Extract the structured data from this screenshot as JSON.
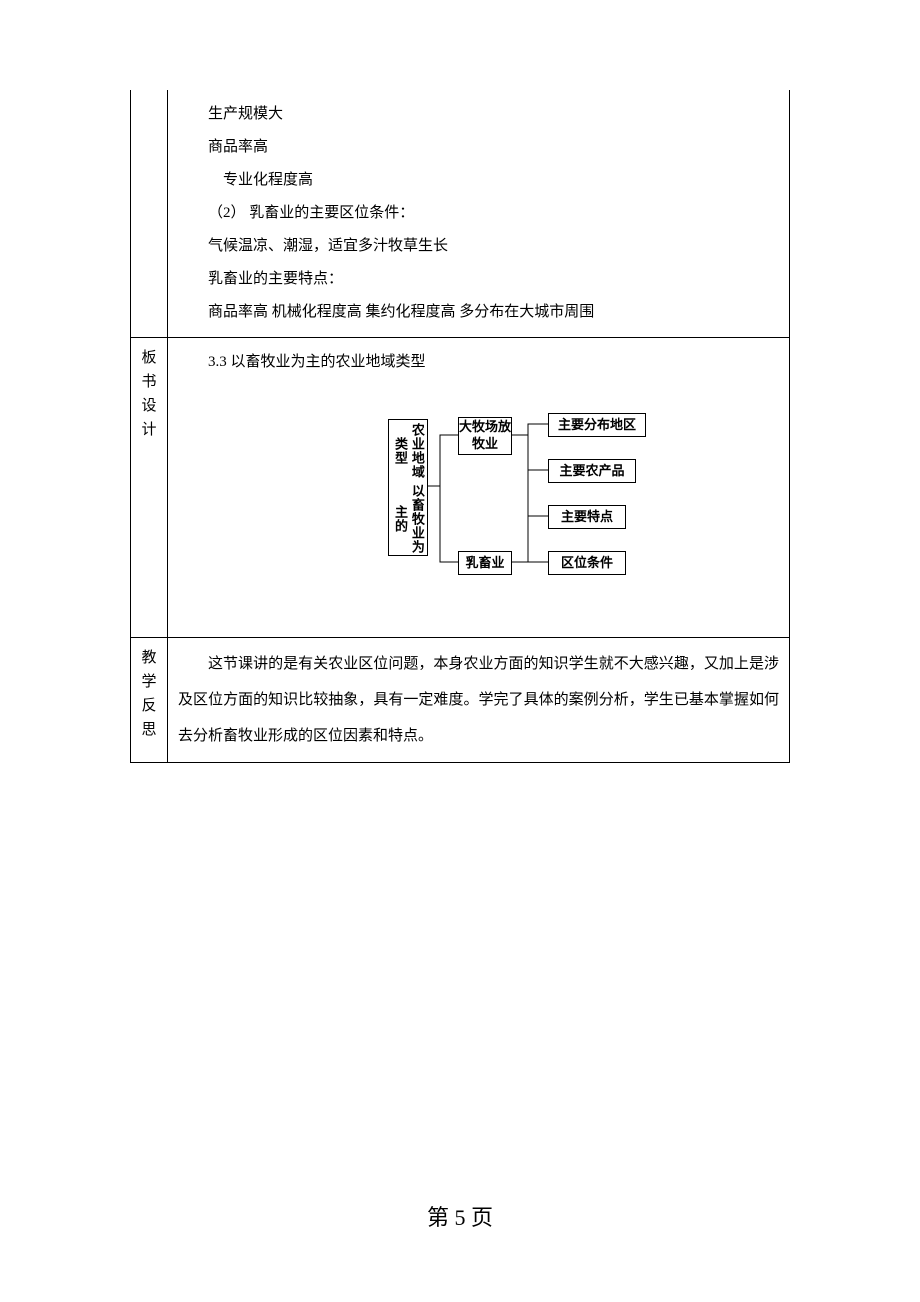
{
  "row1": {
    "lines": [
      {
        "text": "生产规模大",
        "cls": "content-line"
      },
      {
        "text": "商品率高",
        "cls": "content-line"
      },
      {
        "text": "专业化程度高",
        "cls": "content-line more"
      },
      {
        "text": "（2） 乳畜业的主要区位条件：",
        "cls": "content-line"
      },
      {
        "text": "气候温凉、潮湿，适宜多汁牧草生长",
        "cls": "content-line"
      },
      {
        "text": "乳畜业的主要特点：",
        "cls": "content-line"
      },
      {
        "text": "商品率高  机械化程度高 集约化程度高 多分布在大城市周围",
        "cls": "content-line"
      }
    ]
  },
  "row2": {
    "label": "板书设计",
    "title": "3.3 以畜牧业为主的农业地域类型",
    "diagram": {
      "root_sub": "农业地域类型",
      "root_main": "以畜牧业为主的",
      "branch1": "大牧场放牧业",
      "branch2": "乳畜业",
      "leaf1": "主要分布地区",
      "leaf2": "主要农产品",
      "leaf3": "主要特点",
      "leaf4": "区位条件"
    }
  },
  "row3": {
    "label": "教学反思",
    "text": "这节课讲的是有关农业区位问题，本身农业方面的知识学生就不大感兴趣，又加上是涉及区位方面的知识比较抽象，具有一定难度。学完了具体的案例分析，学生已基本掌握如何去分析畜牧业形成的区位因素和特点。"
  },
  "footer": "第 5 页"
}
